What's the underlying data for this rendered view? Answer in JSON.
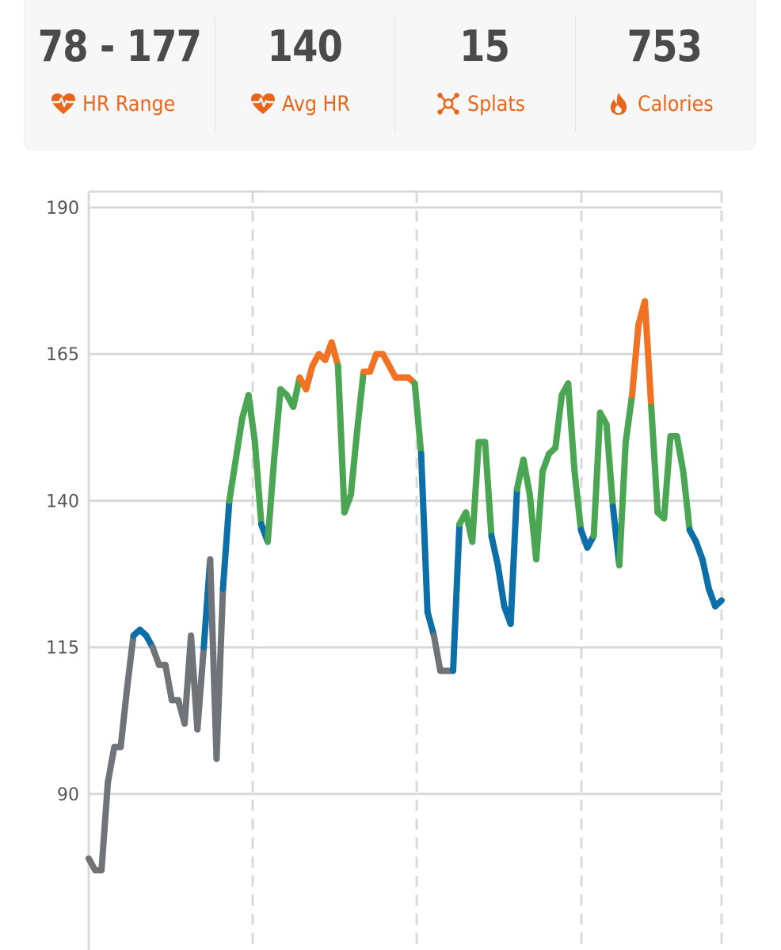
{
  "stats": [
    {
      "value": "78 - 177",
      "label": "HR Range",
      "icon": "heart-rate-icon"
    },
    {
      "value": "140",
      "label": "Avg HR",
      "icon": "heart-rate-icon"
    },
    {
      "value": "15",
      "label": "Splats",
      "icon": "splat-icon"
    },
    {
      "value": "753",
      "label": "Calories",
      "icon": "flame-icon"
    }
  ],
  "colors": {
    "accent": "#e8661a",
    "value_text": "#4a4a4a",
    "zone_gray": "#707479",
    "zone_blue": "#0d6fa8",
    "zone_green": "#4aa652",
    "zone_orange": "#f07222",
    "zone_red": "#e8252b"
  },
  "chart_data": {
    "type": "line",
    "title": "",
    "xlabel": "",
    "ylabel": "",
    "yticks": [
      190,
      165,
      140,
      115,
      90
    ],
    "ylim": [
      63.4,
      192.7
    ],
    "x_count": 100,
    "grid": "horizontal solid, vertical dashed",
    "zones": [
      {
        "name": "gray",
        "below": 115,
        "color": "#707479"
      },
      {
        "name": "blue",
        "from": 115,
        "to": 135,
        "color": "#0d6fa8"
      },
      {
        "name": "green",
        "from": 135,
        "to": 160,
        "color": "#4aa652"
      },
      {
        "name": "orange",
        "from": 160,
        "to": 177,
        "color": "#f07222"
      },
      {
        "name": "red",
        "above": 177,
        "color": "#e8252b"
      }
    ],
    "series": [
      {
        "values": [
          79,
          77,
          77,
          92,
          98,
          98,
          108,
          117,
          118,
          117,
          115,
          112,
          112,
          106,
          106,
          102,
          117,
          101,
          115,
          130,
          96,
          125,
          140,
          147,
          154,
          158,
          150,
          136,
          133,
          147,
          159,
          158,
          156,
          161,
          159,
          163,
          165,
          164,
          167,
          163,
          138,
          141,
          152,
          162,
          162,
          165,
          165,
          163,
          161,
          161,
          161,
          160,
          148,
          121,
          117,
          111,
          111,
          111,
          136,
          138,
          133,
          150,
          150,
          134,
          129,
          122,
          119,
          142,
          147,
          141,
          130,
          145,
          148,
          149,
          158,
          160,
          145,
          135,
          132,
          134,
          155,
          153,
          139,
          129,
          150,
          158,
          170,
          174,
          156,
          138,
          137,
          151,
          151,
          145,
          135,
          133,
          130,
          125,
          122,
          123
        ]
      }
    ]
  }
}
